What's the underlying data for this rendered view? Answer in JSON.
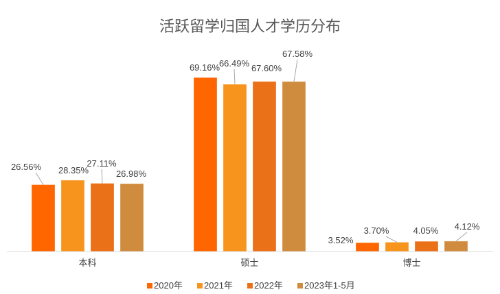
{
  "chart_data": {
    "type": "bar",
    "title": "活跃留学归国人才学历分布",
    "categories": [
      "本科",
      "硕士",
      "博士"
    ],
    "series": [
      {
        "name": "2020年",
        "color": "#FF6600",
        "values": [
          26.56,
          69.16,
          3.52
        ]
      },
      {
        "name": "2021年",
        "color": "#F7941D",
        "values": [
          28.35,
          66.49,
          3.7
        ]
      },
      {
        "name": "2022年",
        "color": "#EB7119",
        "values": [
          27.11,
          67.6,
          4.05
        ]
      },
      {
        "name": "2023年1-5月",
        "color": "#CF8C3E",
        "values": [
          26.98,
          67.58,
          4.12
        ]
      }
    ],
    "value_format": "percent-2dp",
    "ylim": [
      0,
      100
    ],
    "grid": false,
    "legend": "bottom"
  }
}
